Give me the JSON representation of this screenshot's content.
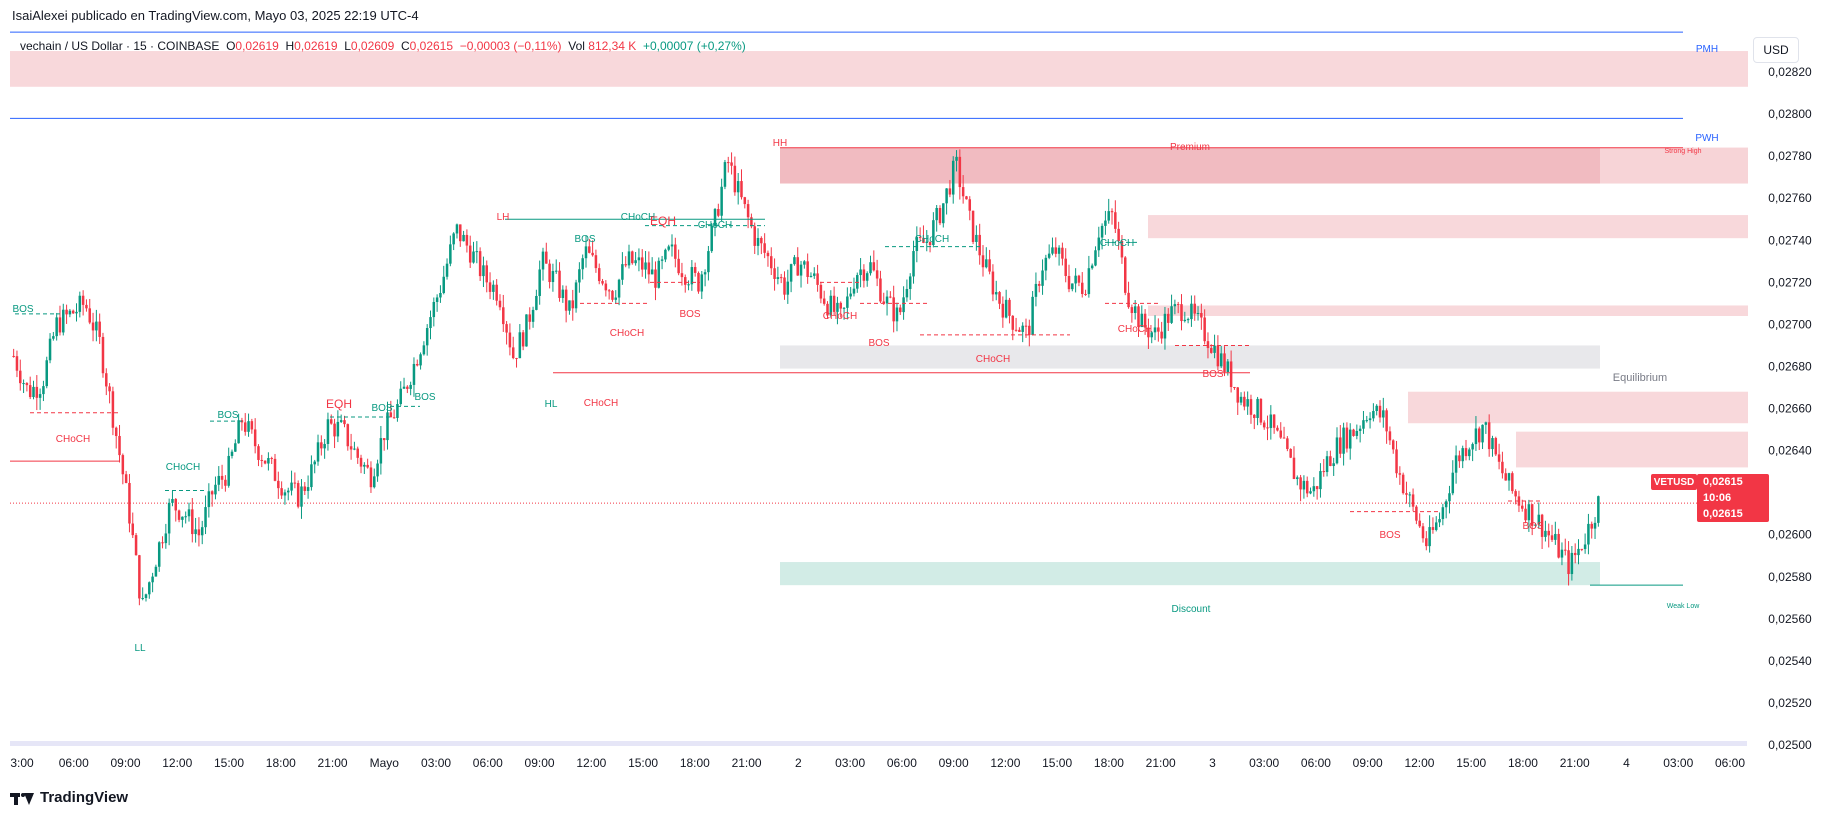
{
  "header": {
    "published_by": "IsaiAlexei publicado en TradingView.com, Mayo 03, 2025 22:19 UTC-4"
  },
  "legend": {
    "symbol": "vechain / US Dollar · 15 · COINBASE",
    "o_label": "O",
    "o_value": "0,02619",
    "h_label": "H",
    "h_value": "0,02619",
    "l_label": "L",
    "l_value": "0,02609",
    "c_label": "C",
    "c_value": "0,02615",
    "change": "−0,00003 (−0,11%)",
    "vol_label": "Vol",
    "vol_value": "812,34 K",
    "extra": "+0,00007 (+0,27%)"
  },
  "currency_button": "USD",
  "price_tag": {
    "ticker": "VETUSD",
    "price": "0,02615",
    "countdown": "10:06",
    "price2": "0,02615"
  },
  "footer": {
    "brand": "TradingView"
  },
  "colors": {
    "bull": "#089981",
    "bear": "#f23645",
    "premium_zone": "#f7d4d7",
    "discount_zone": "#cdeae3",
    "equilibrium_zone": "#e6e6e9",
    "pwh_line": "#2962ff"
  },
  "chart_data": {
    "type": "candlestick",
    "title": "vechain / US Dollar · 15 · COINBASE",
    "ylim": [
      0.025,
      0.0284
    ],
    "y_ticks": [
      "0,02820",
      "0,02800",
      "0,02780",
      "0,02760",
      "0,02740",
      "0,02720",
      "0,02700",
      "0,02680",
      "0,02660",
      "0,02640",
      "0,02600",
      "0,02580",
      "0,02560",
      "0,02540",
      "0,02520",
      "0,02500"
    ],
    "x_ticks": [
      "3:00",
      "06:00",
      "09:00",
      "12:00",
      "15:00",
      "18:00",
      "21:00",
      "Mayo",
      "03:00",
      "06:00",
      "09:00",
      "12:00",
      "15:00",
      "18:00",
      "21:00",
      "2",
      "03:00",
      "06:00",
      "09:00",
      "12:00",
      "15:00",
      "18:00",
      "21:00",
      "3",
      "03:00",
      "06:00",
      "09:00",
      "12:00",
      "15:00",
      "18:00",
      "21:00",
      "4",
      "03:00",
      "06:00"
    ],
    "close_path": [
      0.02685,
      0.02668,
      0.02672,
      0.027,
      0.02705,
      0.0271,
      0.02692,
      0.02655,
      0.02615,
      0.02565,
      0.0259,
      0.02615,
      0.0261,
      0.026,
      0.02622,
      0.0263,
      0.02655,
      0.02642,
      0.02632,
      0.02622,
      0.02618,
      0.02632,
      0.02652,
      0.0265,
      0.02638,
      0.02628,
      0.0265,
      0.02662,
      0.0268,
      0.027,
      0.0272,
      0.02745,
      0.02735,
      0.02722,
      0.02715,
      0.02685,
      0.027,
      0.0273,
      0.0272,
      0.02705,
      0.02735,
      0.02725,
      0.02715,
      0.0273,
      0.02728,
      0.02722,
      0.02735,
      0.02725,
      0.0272,
      0.02745,
      0.02778,
      0.02758,
      0.0274,
      0.0273,
      0.02718,
      0.0273,
      0.02722,
      0.0271,
      0.02702,
      0.02725,
      0.02728,
      0.02712,
      0.02703,
      0.02735,
      0.0274,
      0.02755,
      0.02776,
      0.02748,
      0.02728,
      0.02712,
      0.02702,
      0.02695,
      0.02728,
      0.02735,
      0.0272,
      0.02718,
      0.02745,
      0.02752,
      0.02715,
      0.027,
      0.02695,
      0.02705,
      0.02708,
      0.027,
      0.0269,
      0.02678,
      0.02665,
      0.0266,
      0.02652,
      0.0264,
      0.02625,
      0.0262,
      0.02635,
      0.02645,
      0.0265,
      0.0266,
      0.02655,
      0.0263,
      0.02612,
      0.02595,
      0.0261,
      0.02635,
      0.02645,
      0.02652,
      0.02633,
      0.0262,
      0.02612,
      0.02605,
      0.02595,
      0.02585,
      0.02598,
      0.02615
    ],
    "structure_labels": [
      {
        "text": "BOS",
        "color": "bull"
      },
      {
        "text": "CHoCH",
        "color": "bear"
      },
      {
        "text": "LL",
        "color": "bull"
      },
      {
        "text": "CHoCH",
        "color": "bull"
      },
      {
        "text": "BOS",
        "color": "bull"
      },
      {
        "text": "EQH",
        "color": "bear"
      },
      {
        "text": "BOS",
        "color": "bull"
      },
      {
        "text": "BOS",
        "color": "bull"
      },
      {
        "text": "LH",
        "color": "bear"
      },
      {
        "text": "HL",
        "color": "bull"
      },
      {
        "text": "BOS",
        "color": "bull"
      },
      {
        "text": "CHoCH",
        "color": "bull"
      },
      {
        "text": "EQH",
        "color": "bear"
      },
      {
        "text": "CHoCH",
        "color": "bear"
      },
      {
        "text": "BOS",
        "color": "bear"
      },
      {
        "text": "CHoCH",
        "color": "bull"
      },
      {
        "text": "HH",
        "color": "bear"
      },
      {
        "text": "CHoCH",
        "color": "bear"
      },
      {
        "text": "BOS",
        "color": "bear"
      },
      {
        "text": "CHoCH",
        "color": "bull"
      },
      {
        "text": "CHoCH",
        "color": "bear"
      },
      {
        "text": "CHoCH",
        "color": "bear"
      },
      {
        "text": "CHoCH",
        "color": "bull"
      },
      {
        "text": "CHoCH",
        "color": "bear"
      },
      {
        "text": "BOS",
        "color": "bear"
      },
      {
        "text": "BOS",
        "color": "bear"
      },
      {
        "text": "BOS",
        "color": "bear"
      }
    ],
    "zone_labels": {
      "premium": "Premium",
      "equilibrium": "Equilibrium",
      "discount": "Discount",
      "pmh": "PMH",
      "pwh": "PWH",
      "strong_high": "Strong High",
      "weak_low": "Weak Low"
    },
    "zones": [
      {
        "name": "pmh-zone",
        "y_top": 0.0283,
        "y_bottom": 0.02813,
        "kind": "premium"
      },
      {
        "name": "premium-zone",
        "y_top": 0.02784,
        "y_bottom": 0.02767,
        "kind": "premium_strong"
      },
      {
        "name": "supply-zone-1",
        "y_top": 0.02752,
        "y_bottom": 0.02741,
        "kind": "premium"
      },
      {
        "name": "supply-zone-2",
        "y_top": 0.02709,
        "y_bottom": 0.02704,
        "kind": "premium"
      },
      {
        "name": "equilibrium-zone",
        "y_top": 0.0269,
        "y_bottom": 0.02679,
        "kind": "equilibrium"
      },
      {
        "name": "supply-zone-3",
        "y_top": 0.02668,
        "y_bottom": 0.02653,
        "kind": "premium"
      },
      {
        "name": "supply-zone-4",
        "y_top": 0.02649,
        "y_bottom": 0.02632,
        "kind": "premium"
      },
      {
        "name": "discount-zone",
        "y_top": 0.02587,
        "y_bottom": 0.02576,
        "kind": "discount"
      }
    ],
    "lines": {
      "pmh": 0.02839,
      "pwh": 0.02798,
      "current": 0.02615
    }
  }
}
